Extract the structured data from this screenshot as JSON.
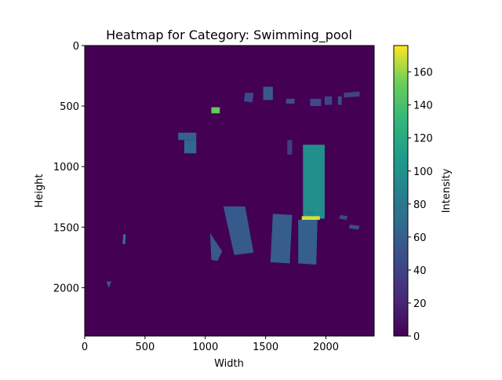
{
  "chart_data": {
    "type": "heatmap",
    "title": "Heatmap for Category: Swimming_pool",
    "xlabel": "Width",
    "ylabel": "Height",
    "xlim": [
      0,
      2400
    ],
    "ylim": [
      2400,
      0
    ],
    "x_ticks": [
      0,
      500,
      1000,
      1500,
      2000
    ],
    "y_ticks": [
      0,
      500,
      1000,
      1500,
      2000
    ],
    "colorbar": {
      "label": "Intensity",
      "range": [
        0,
        176
      ],
      "ticks": [
        0,
        20,
        40,
        60,
        80,
        100,
        120,
        140,
        160
      ],
      "colormap": "viridis"
    },
    "background_value": 0,
    "regions": [
      {
        "poly": [
          [
            1810,
            820
          ],
          [
            1990,
            820
          ],
          [
            1990,
            1430
          ],
          [
            1810,
            1430
          ]
        ],
        "value": 98
      },
      {
        "poly": [
          [
            1800,
            1410
          ],
          [
            1950,
            1410
          ],
          [
            1950,
            1440
          ],
          [
            1800,
            1440
          ]
        ],
        "value": 170
      },
      {
        "poly": [
          [
            1770,
            1440
          ],
          [
            1930,
            1440
          ],
          [
            1920,
            1810
          ],
          [
            1770,
            1800
          ]
        ],
        "value": 60
      },
      {
        "poly": [
          [
            1560,
            1390
          ],
          [
            1720,
            1400
          ],
          [
            1700,
            1800
          ],
          [
            1540,
            1790
          ]
        ],
        "value": 58
      },
      {
        "poly": [
          [
            1150,
            1330
          ],
          [
            1330,
            1330
          ],
          [
            1400,
            1710
          ],
          [
            1240,
            1730
          ]
        ],
        "value": 56
      },
      {
        "poly": [
          [
            1040,
            1550
          ],
          [
            1140,
            1700
          ],
          [
            1100,
            1780
          ],
          [
            1050,
            1770
          ]
        ],
        "value": 55
      },
      {
        "poly": [
          [
            775,
            720
          ],
          [
            925,
            720
          ],
          [
            925,
            780
          ],
          [
            775,
            780
          ]
        ],
        "value": 62
      },
      {
        "poly": [
          [
            825,
            780
          ],
          [
            925,
            780
          ],
          [
            925,
            890
          ],
          [
            825,
            890
          ]
        ],
        "value": 65
      },
      {
        "poly": [
          [
            1050,
            510
          ],
          [
            1120,
            510
          ],
          [
            1120,
            560
          ],
          [
            1050,
            560
          ]
        ],
        "value": 150
      },
      {
        "poly": [
          [
            1480,
            340
          ],
          [
            1560,
            340
          ],
          [
            1560,
            450
          ],
          [
            1480,
            450
          ]
        ],
        "value": 55
      },
      {
        "poly": [
          [
            1670,
            440
          ],
          [
            1740,
            440
          ],
          [
            1740,
            480
          ],
          [
            1670,
            480
          ]
        ],
        "value": 48
      },
      {
        "poly": [
          [
            1870,
            440
          ],
          [
            1960,
            440
          ],
          [
            1960,
            500
          ],
          [
            1870,
            500
          ]
        ],
        "value": 45
      },
      {
        "poly": [
          [
            1990,
            420
          ],
          [
            2050,
            420
          ],
          [
            2050,
            490
          ],
          [
            1990,
            490
          ]
        ],
        "value": 42
      },
      {
        "poly": [
          [
            2100,
            420
          ],
          [
            2130,
            420
          ],
          [
            2130,
            490
          ],
          [
            2100,
            490
          ]
        ],
        "value": 50
      },
      {
        "poly": [
          [
            1680,
            780
          ],
          [
            1720,
            780
          ],
          [
            1720,
            900
          ],
          [
            1680,
            900
          ]
        ],
        "value": 35
      },
      {
        "poly": [
          [
            1830,
            1350
          ],
          [
            1900,
            1380
          ],
          [
            1890,
            1410
          ],
          [
            1820,
            1380
          ]
        ],
        "value": 90
      },
      {
        "poly": [
          [
            2120,
            1400
          ],
          [
            2180,
            1410
          ],
          [
            2170,
            1440
          ],
          [
            2110,
            1430
          ]
        ],
        "value": 45
      },
      {
        "poly": [
          [
            2200,
            1480
          ],
          [
            2280,
            1490
          ],
          [
            2270,
            1520
          ],
          [
            2190,
            1510
          ]
        ],
        "value": 48
      },
      {
        "poly": [
          [
            180,
            1950
          ],
          [
            220,
            1950
          ],
          [
            200,
            2000
          ]
        ],
        "value": 58
      },
      {
        "poly": [
          [
            320,
            1560
          ],
          [
            340,
            1560
          ],
          [
            335,
            1640
          ],
          [
            315,
            1640
          ]
        ],
        "value": 85
      },
      {
        "poly": [
          [
            1330,
            390
          ],
          [
            1400,
            390
          ],
          [
            1390,
            470
          ],
          [
            1320,
            460
          ]
        ],
        "value": 45
      },
      {
        "poly": [
          [
            2150,
            390
          ],
          [
            2280,
            380
          ],
          [
            2280,
            420
          ],
          [
            2150,
            430
          ]
        ],
        "value": 40
      }
    ]
  }
}
